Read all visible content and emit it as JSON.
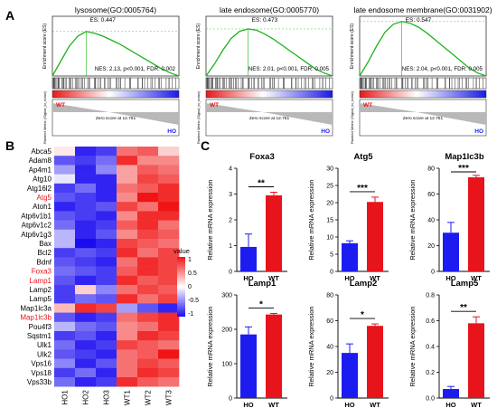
{
  "figure": {
    "panel_letters": [
      "A",
      "B",
      "C"
    ]
  },
  "gsea": {
    "plots": [
      {
        "title": "lysosome(GO:0005764)",
        "es_label": "ES: 0.447",
        "stats": "NES: 2.13, p<0.001, FDR: 0.002",
        "es_curve": [
          0,
          0.15,
          0.3,
          0.4,
          0.447,
          0.43,
          0.4,
          0.36,
          0.32,
          0.27,
          0.22,
          0.17,
          0.12,
          0.07,
          0.03,
          0
        ]
      },
      {
        "title": "late endosome(GO:0005770)",
        "es_label": "ES: 0.473",
        "stats": "NES: 2.01, p<0.001, FDR: 0.005",
        "es_curve": [
          0,
          0.12,
          0.26,
          0.38,
          0.45,
          0.473,
          0.46,
          0.42,
          0.37,
          0.31,
          0.25,
          0.19,
          0.13,
          0.07,
          0.03,
          0
        ]
      },
      {
        "title": "late endosome membrane(GO:0031902)",
        "es_label": "ES: 0.547",
        "stats": "NES: 2.04, p<0.001, FDR: 0.005",
        "es_curve": [
          0,
          0.14,
          0.3,
          0.44,
          0.52,
          0.547,
          0.53,
          0.49,
          0.43,
          0.36,
          0.29,
          0.22,
          0.15,
          0.08,
          0.03,
          0
        ]
      }
    ],
    "ylabel_es": "Enrichment score (ES)",
    "ylabel_metric": "Ranked Metric (Signal_to_noise)",
    "wt_label": "WT",
    "ho_label": "HO",
    "zero_score": "Zero score at 12.751"
  },
  "heatmap": {
    "genes": [
      "Abca5",
      "Adam8",
      "Ap4m1",
      "Atg10",
      "Atg16l2",
      "Atg5",
      "Atoh1",
      "Atp6v1b1",
      "Atp6v1c2",
      "Atp6v1g3",
      "Bax",
      "Bcl2",
      "Bdnf",
      "Foxa3",
      "Lamp1",
      "Lamp2",
      "Lamp5",
      "Map1lc3a",
      "Map1lc3b",
      "Pou4f3",
      "Sqstm1",
      "Ulk1",
      "Ulk2",
      "Vps16",
      "Vps18",
      "Vps33b"
    ],
    "highlighted": [
      "Atg5",
      "Foxa3",
      "Lamp1",
      "Map1lc3b"
    ],
    "highlight_color": "#e8141c",
    "samples": [
      "HO1",
      "HO2",
      "HO3",
      "WT1",
      "WT2",
      "WT3"
    ],
    "values": [
      [
        0.1,
        -0.9,
        -0.8,
        0.6,
        0.7,
        0.2
      ],
      [
        -0.7,
        -0.8,
        -0.6,
        0.9,
        0.5,
        0.5
      ],
      [
        -0.4,
        -0.9,
        -0.5,
        0.4,
        0.7,
        0.6
      ],
      [
        -0.1,
        -0.9,
        -0.9,
        0.4,
        0.8,
        0.7
      ],
      [
        -0.8,
        -0.6,
        -0.9,
        0.6,
        0.7,
        0.9
      ],
      [
        -0.7,
        -0.8,
        -0.9,
        0.5,
        1.0,
        0.9
      ],
      [
        -0.9,
        -0.8,
        -0.7,
        0.8,
        0.6,
        1.0
      ],
      [
        -0.7,
        -0.8,
        -0.9,
        0.5,
        0.9,
        0.9
      ],
      [
        -0.6,
        -0.9,
        -0.8,
        0.7,
        0.9,
        0.6
      ],
      [
        -0.3,
        -0.9,
        -0.7,
        0.5,
        0.8,
        0.7
      ],
      [
        -0.3,
        -1.0,
        -0.9,
        0.8,
        0.7,
        0.6
      ],
      [
        -0.8,
        -0.7,
        -0.8,
        0.9,
        0.6,
        0.8
      ],
      [
        -0.7,
        -0.8,
        -0.9,
        0.6,
        0.9,
        0.8
      ],
      [
        -0.6,
        -0.7,
        -0.8,
        0.7,
        0.9,
        0.8
      ],
      [
        -0.7,
        -0.9,
        -0.8,
        0.9,
        0.7,
        0.8
      ],
      [
        -0.8,
        0.2,
        -0.5,
        0.6,
        0.8,
        0.7
      ],
      [
        -0.8,
        -0.6,
        -0.7,
        0.9,
        0.6,
        0.8
      ],
      [
        0.3,
        0.9,
        0.8,
        -0.4,
        -0.7,
        -0.9
      ],
      [
        -0.7,
        -0.9,
        -0.8,
        0.6,
        0.8,
        0.9
      ],
      [
        -0.3,
        -0.6,
        -0.7,
        0.5,
        0.6,
        0.9
      ],
      [
        -0.8,
        -0.7,
        -0.9,
        0.5,
        0.9,
        0.8
      ],
      [
        -0.6,
        -0.9,
        -0.8,
        0.8,
        0.7,
        0.6
      ],
      [
        -0.7,
        -0.8,
        -0.9,
        0.6,
        0.7,
        1.0
      ],
      [
        -0.5,
        -0.9,
        -0.7,
        0.6,
        0.8,
        0.7
      ],
      [
        -0.8,
        -0.6,
        -0.9,
        0.6,
        0.9,
        0.8
      ],
      [
        -0.6,
        -0.9,
        -0.8,
        0.9,
        0.7,
        0.6
      ]
    ],
    "legend_title": "value",
    "legend_ticks": [
      "1",
      "0.5",
      "0",
      "-0.5",
      "-1"
    ],
    "colors": {
      "low": "#1a0cf0",
      "mid": "#ffffff",
      "high": "#f01414"
    }
  },
  "chart_data": [
    {
      "type": "bar",
      "title": "Foxa3",
      "ylabel": "Relative mRNA expression",
      "categories": [
        "HO",
        "WT"
      ],
      "values": [
        0.95,
        2.95
      ],
      "errors": [
        0.5,
        0.12
      ],
      "ylim": [
        0,
        4
      ],
      "yticks": [
        "0",
        "1",
        "2",
        "3",
        "4"
      ],
      "significance": "**",
      "colors": [
        "#1c1cf0",
        "#e8141c"
      ]
    },
    {
      "type": "bar",
      "title": "Atg5",
      "ylabel": "Relative mRNA expression",
      "categories": [
        "HO",
        "WT"
      ],
      "values": [
        8.2,
        20.2
      ],
      "errors": [
        0.7,
        1.4
      ],
      "ylim": [
        0,
        30
      ],
      "yticks": [
        "0",
        "5",
        "10",
        "15",
        "20",
        "25",
        "30"
      ],
      "significance": "***",
      "colors": [
        "#1c1cf0",
        "#e8141c"
      ]
    },
    {
      "type": "bar",
      "title": "Map1lc3b",
      "ylabel": "Relative mRNA expression",
      "categories": [
        "HO",
        "WT"
      ],
      "values": [
        30,
        73
      ],
      "errors": [
        8,
        1.5
      ],
      "ylim": [
        0,
        80
      ],
      "yticks": [
        "0",
        "20",
        "40",
        "60",
        "80"
      ],
      "significance": "***",
      "colors": [
        "#1c1cf0",
        "#e8141c"
      ]
    },
    {
      "type": "bar",
      "title": "Lamp1",
      "ylabel": "Relative mRNA expression",
      "categories": [
        "HO",
        "WT"
      ],
      "values": [
        185,
        243
      ],
      "errors": [
        22,
        3
      ],
      "ylim": [
        0,
        300
      ],
      "yticks": [
        "0",
        "100",
        "200",
        "300"
      ],
      "significance": "*",
      "colors": [
        "#1c1cf0",
        "#e8141c"
      ]
    },
    {
      "type": "bar",
      "title": "Lamp2",
      "ylabel": "Relative mRNA expression",
      "categories": [
        "HO",
        "WT"
      ],
      "values": [
        35,
        56
      ],
      "errors": [
        7,
        1.5
      ],
      "ylim": [
        0,
        80
      ],
      "yticks": [
        "0",
        "20",
        "40",
        "60",
        "80"
      ],
      "significance": "*",
      "colors": [
        "#1c1cf0",
        "#e8141c"
      ]
    },
    {
      "type": "bar",
      "title": "Lamp5",
      "ylabel": "Relative mRNA expression",
      "categories": [
        "HO",
        "WT"
      ],
      "values": [
        0.07,
        0.58
      ],
      "errors": [
        0.02,
        0.05
      ],
      "ylim": [
        0,
        0.8
      ],
      "yticks": [
        "0.0",
        "0.2",
        "0.4",
        "0.6",
        "0.8"
      ],
      "significance": "**",
      "colors": [
        "#1c1cf0",
        "#e8141c"
      ]
    }
  ]
}
